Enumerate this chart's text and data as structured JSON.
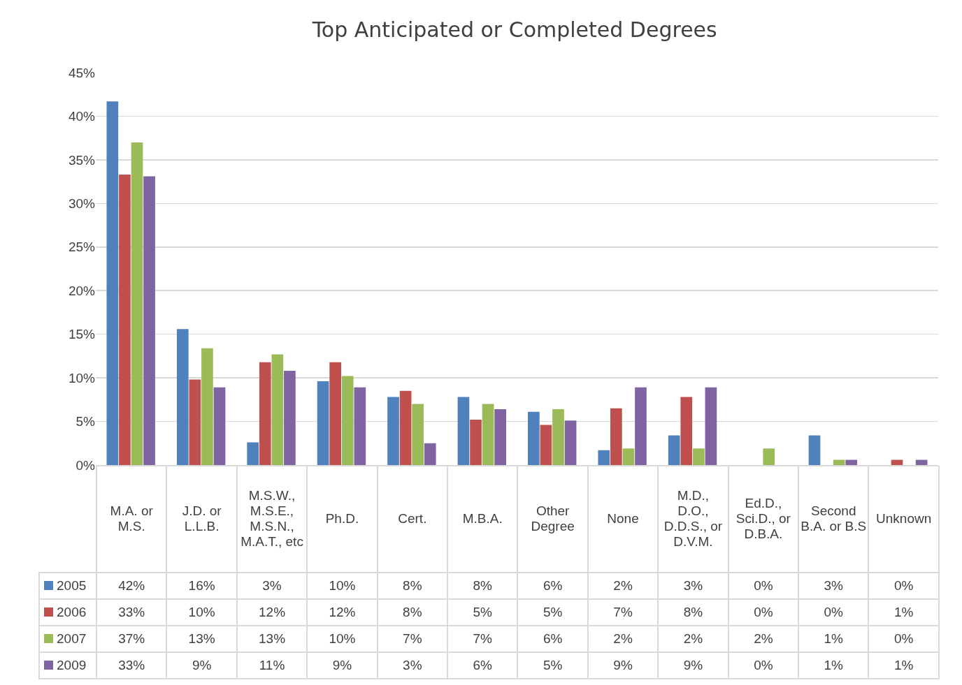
{
  "chart_data": {
    "type": "bar",
    "title": "Top Anticipated or Completed Degrees",
    "categories": [
      "M.A. or M.S.",
      "J.D. or L.L.B.",
      "M.S.W., M.S.E., M.S.N., M.A.T., etc",
      "Ph.D.",
      "Cert.",
      "M.B.A.",
      "Other Degree",
      "None",
      "M.D., D.O., D.D.S., or D.V.M.",
      "Ed.D., Sci.D., or D.B.A.",
      "Second B.A. or B.S",
      "Unknown"
    ],
    "series": [
      {
        "name": "2005",
        "color": "#4f81bd",
        "values": [
          41.7,
          15.6,
          2.6,
          9.6,
          7.8,
          7.8,
          6.1,
          1.7,
          3.4,
          0,
          3.4,
          0
        ],
        "value_labels": [
          "42%",
          "16%",
          "3%",
          "10%",
          "8%",
          "8%",
          "6%",
          "2%",
          "3%",
          "0%",
          "3%",
          "0%"
        ]
      },
      {
        "name": "2006",
        "color": "#c0504d",
        "values": [
          33.3,
          9.8,
          11.8,
          11.8,
          8.5,
          5.2,
          4.6,
          6.5,
          7.8,
          0,
          0,
          0.6
        ],
        "value_labels": [
          "33%",
          "10%",
          "12%",
          "12%",
          "8%",
          "5%",
          "5%",
          "7%",
          "8%",
          "0%",
          "0%",
          "1%"
        ]
      },
      {
        "name": "2007",
        "color": "#9bbb59",
        "values": [
          37.0,
          13.4,
          12.7,
          10.2,
          7.0,
          7.0,
          6.4,
          1.9,
          1.9,
          1.9,
          0.6,
          0
        ],
        "value_labels": [
          "37%",
          "13%",
          "13%",
          "10%",
          "7%",
          "7%",
          "6%",
          "2%",
          "2%",
          "2%",
          "1%",
          "0%"
        ]
      },
      {
        "name": "2009",
        "color": "#8064a2",
        "values": [
          33.1,
          8.9,
          10.8,
          8.9,
          2.5,
          6.4,
          5.1,
          8.9,
          8.9,
          0,
          0.6,
          0.6
        ],
        "value_labels": [
          "33%",
          "9%",
          "11%",
          "9%",
          "3%",
          "6%",
          "5%",
          "9%",
          "9%",
          "0%",
          "1%",
          "1%"
        ]
      }
    ],
    "ylim": [
      0,
      45
    ],
    "yticks": [
      {
        "value": 0,
        "label": "0%"
      },
      {
        "value": 5,
        "label": "5%"
      },
      {
        "value": 10,
        "label": "10%"
      },
      {
        "value": 15,
        "label": "15%"
      },
      {
        "value": 20,
        "label": "20%"
      },
      {
        "value": 25,
        "label": "25%"
      },
      {
        "value": 30,
        "label": "30%"
      },
      {
        "value": 35,
        "label": "35%"
      },
      {
        "value": 40,
        "label": "40%"
      },
      {
        "value": 45,
        "label": "45%"
      }
    ],
    "grid": "y",
    "legend": "bottom left",
    "tick_labels": "y"
  }
}
